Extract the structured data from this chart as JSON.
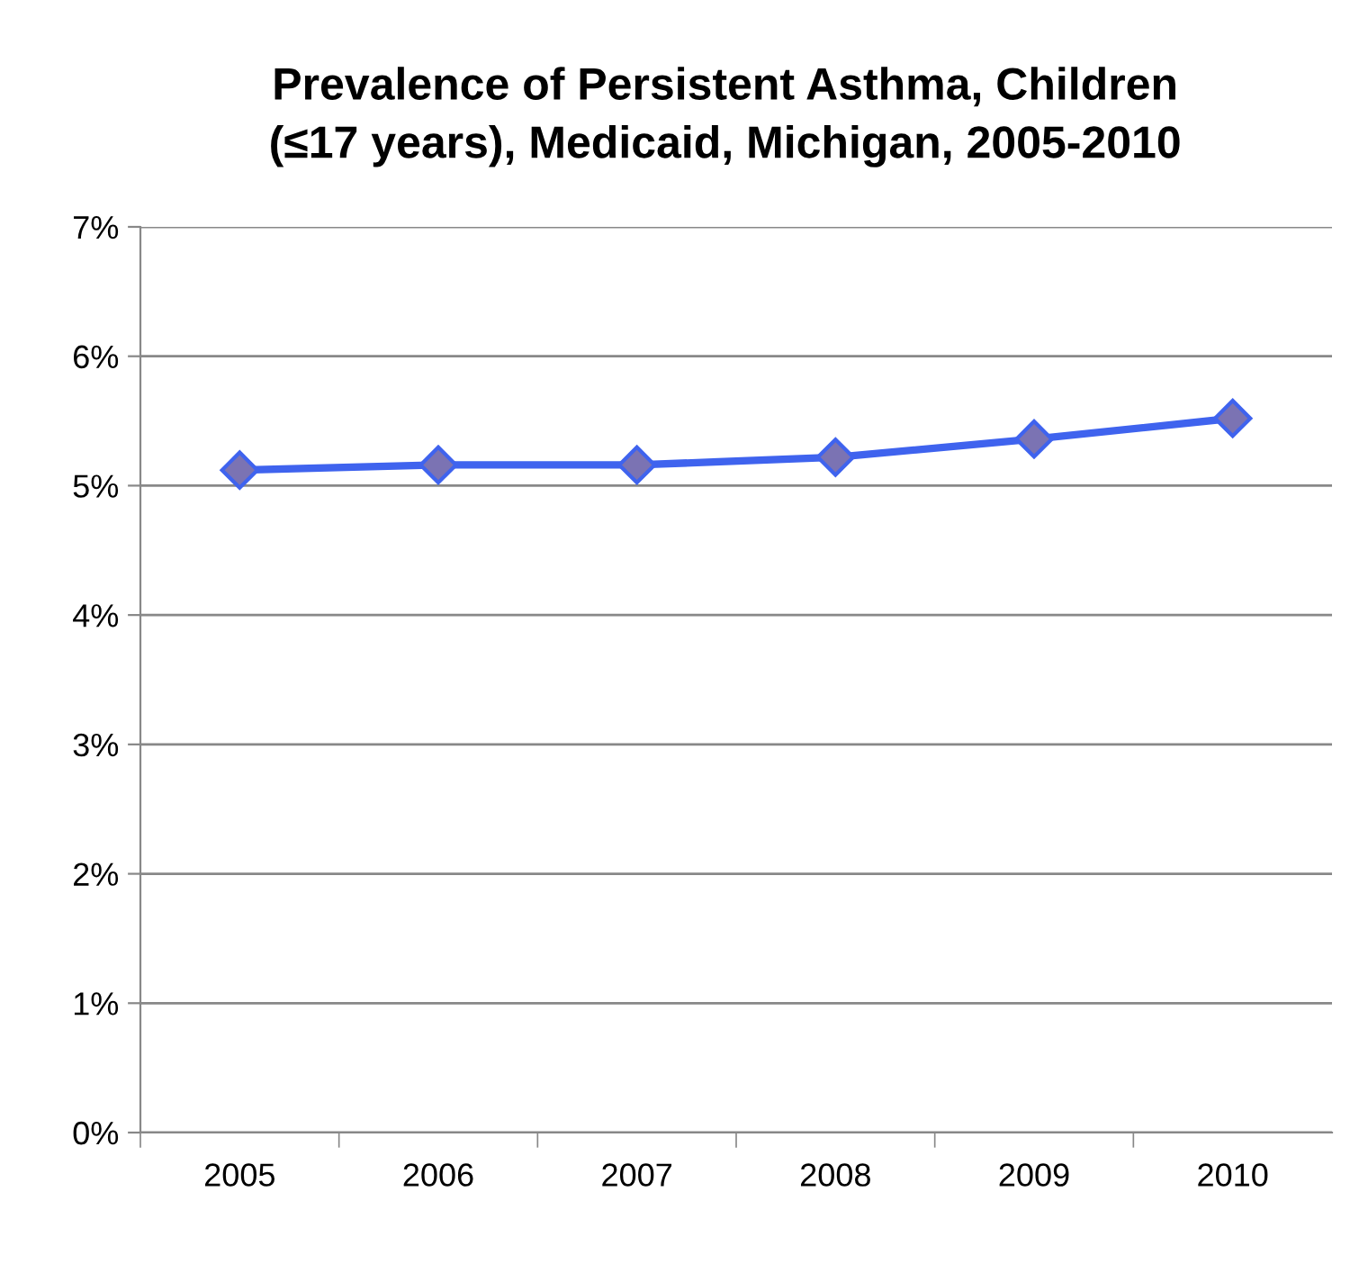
{
  "chart_data": {
    "type": "line",
    "title": "Prevalence of Persistent Asthma, Children\n(≤17 years), Medicaid, Michigan, 2005-2010",
    "categories": [
      "2005",
      "2006",
      "2007",
      "2008",
      "2009",
      "2010"
    ],
    "series": [
      {
        "color": "#3f63ee",
        "values": [
          5.12,
          5.16,
          5.16,
          5.22,
          5.36,
          5.52
        ]
      }
    ],
    "ylim": [
      0,
      7
    ],
    "yticks": [
      {
        "value": 0,
        "label": "0%"
      },
      {
        "value": 1,
        "label": "1%"
      },
      {
        "value": 2,
        "label": "2%"
      },
      {
        "value": 3,
        "label": "3%"
      },
      {
        "value": 4,
        "label": "4%"
      },
      {
        "value": 5,
        "label": "5%"
      },
      {
        "value": 6,
        "label": "6%"
      },
      {
        "value": 7,
        "label": "7%"
      }
    ],
    "grid": "y",
    "marker": "diamond",
    "line_style": "solid"
  }
}
